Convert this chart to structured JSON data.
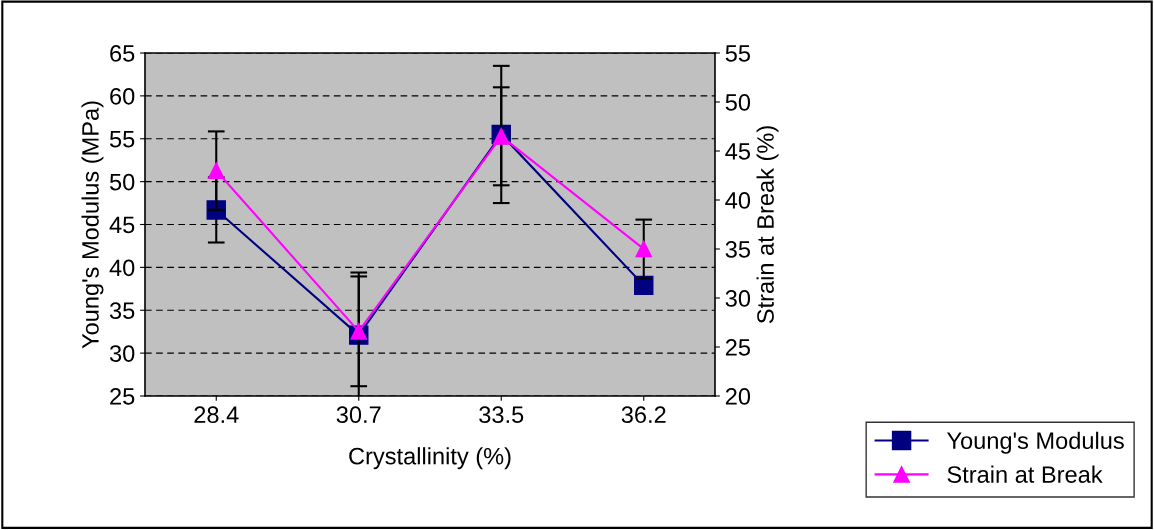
{
  "chart_data": {
    "type": "line",
    "xlabel": "Crystallinity (%)",
    "ylabel": "Young's Modulus (MPa)",
    "y2label": "Strain at Break (%)",
    "categories": [
      "28.4",
      "30.7",
      "33.5",
      "36.2"
    ],
    "series": [
      {
        "name": "Young's Modulus",
        "color": "#000080",
        "marker": "square",
        "values": [
          46.7,
          32.1,
          55.5,
          37.9
        ],
        "errors": [
          3.8,
          7.3,
          8,
          null
        ]
      },
      {
        "name": "Strain at Break",
        "color": "#ff00ff",
        "marker": "triangle",
        "axis": "y2",
        "values": [
          43,
          26.6,
          46.5,
          35
        ],
        "errors": [
          4,
          5.6,
          5,
          3
        ]
      }
    ],
    "ylim": [
      25,
      65
    ],
    "yticks": [
      25,
      30,
      35,
      40,
      45,
      50,
      55,
      60,
      65
    ],
    "y2lim": [
      20,
      55
    ],
    "y2ticks": [
      20,
      25,
      30,
      35,
      40,
      45,
      50,
      55
    ],
    "grid": "y",
    "legend": "right",
    "line_style": "solid"
  }
}
